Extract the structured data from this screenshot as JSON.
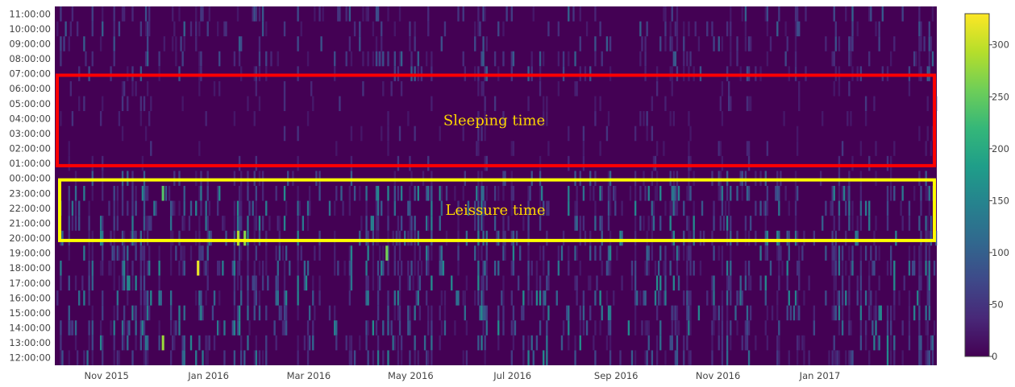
{
  "chart_data": {
    "type": "heatmap",
    "title": "",
    "xlabel": "",
    "ylabel": "",
    "x_range": [
      "2015-10-01",
      "2017-03-12"
    ],
    "x_ticks": [
      {
        "date": "2015-11-01",
        "label": "Nov 2015"
      },
      {
        "date": "2016-01-01",
        "label": "Jan 2016"
      },
      {
        "date": "2016-03-01",
        "label": "Mar 2016"
      },
      {
        "date": "2016-05-01",
        "label": "May 2016"
      },
      {
        "date": "2016-07-01",
        "label": "Jul 2016"
      },
      {
        "date": "2016-09-01",
        "label": "Sep 2016"
      },
      {
        "date": "2016-11-01",
        "label": "Nov 2016"
      },
      {
        "date": "2017-01-01",
        "label": "Jan 2017"
      }
    ],
    "y_categories": [
      "11:00:00",
      "10:00:00",
      "09:00:00",
      "08:00:00",
      "07:00:00",
      "06:00:00",
      "05:00:00",
      "04:00:00",
      "03:00:00",
      "02:00:00",
      "01:00:00",
      "00:00:00",
      "23:00:00",
      "22:00:00",
      "21:00:00",
      "20:00:00",
      "19:00:00",
      "18:00:00",
      "17:00:00",
      "16:00:00",
      "15:00:00",
      "14:00:00",
      "13:00:00",
      "12:00:00"
    ],
    "colorscale": {
      "name": "Viridis",
      "min": 0,
      "max": 330,
      "ticks": [
        0,
        50,
        100,
        150,
        200,
        250,
        300
      ],
      "tick_labels": [
        "0",
        "50",
        "100",
        "150",
        "200",
        "250",
        "300"
      ]
    },
    "band_levels": [
      {
        "hours": "11:00:00-07:00:00",
        "level": "moderate"
      },
      {
        "hours": "06:00:00-01:00:00",
        "level": "low"
      },
      {
        "hours": "00:00:00",
        "level": "moderate"
      },
      {
        "hours": "23:00:00-20:00:00",
        "level": "high"
      },
      {
        "hours": "19:00:00-12:00:00",
        "level": "high"
      }
    ],
    "highlights": [
      {
        "date": "2015-12-25",
        "hour": "18:00:00",
        "value": 320
      },
      {
        "date": "2016-01-18",
        "hour": "20:00:00",
        "value": 290
      },
      {
        "date": "2016-01-22",
        "hour": "20:00:00",
        "value": 270
      },
      {
        "date": "2016-04-16",
        "hour": "19:00:00",
        "value": 260
      },
      {
        "date": "2015-12-04",
        "hour": "13:00:00",
        "value": 280
      },
      {
        "date": "2015-12-04",
        "hour": "23:00:00",
        "value": 240
      }
    ],
    "annotations": [
      {
        "text": "Sleeping time",
        "hours": "06:00:00-01:00:00",
        "color": "#ff0000",
        "text_color": "#ffd700"
      },
      {
        "text": "Leissure time",
        "hours": "23:00:00-20:00:00",
        "color": "#ffff00",
        "text_color": "#ffd700"
      }
    ]
  }
}
